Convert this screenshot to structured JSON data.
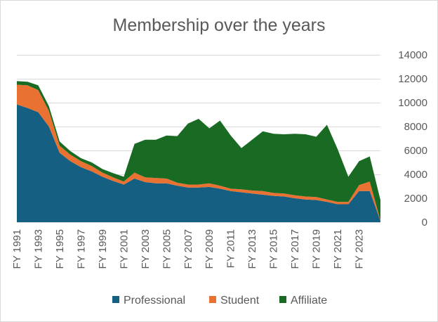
{
  "chart_data": {
    "type": "area",
    "stacked": true,
    "title": "Membership over the years",
    "xlabel": "",
    "ylabel": "",
    "ylim": [
      0,
      14000
    ],
    "yticks": [
      "0",
      "2000",
      "4000",
      "6000",
      "8000",
      "10000",
      "12000",
      "14000"
    ],
    "grid": true,
    "legend_position": "bottom",
    "x": [
      "FY 1991",
      "FY 1992",
      "FY 1993",
      "FY 1994",
      "FY 1995",
      "FY 1996",
      "FY 1997",
      "FY 1998",
      "FY 1999",
      "FY 2000",
      "FY 2001",
      "FY 2002",
      "FY 2003",
      "FY 2004",
      "FY 2005",
      "FY 2006",
      "FY 2007",
      "FY 2008",
      "FY 2009",
      "FY 2010",
      "FY 2011",
      "FY 2012",
      "FY 2013",
      "FY 2014",
      "FY 2015",
      "FY 2016",
      "FY 2017",
      "FY 2018",
      "FY 2019",
      "FY 2020",
      "FY 2021",
      "FY 2022",
      "FY 2023",
      "FY 2024",
      "FY 2025"
    ],
    "xtick_labels": [
      "FY 1991",
      "FY 1993",
      "FY 1995",
      "FY 1997",
      "FY 1999",
      "FY 2001",
      "FY 2003",
      "FY 2005",
      "FY 2007",
      "FY 2009",
      "FY 2011",
      "FY 2013",
      "FY 2015",
      "FY 2017",
      "FY 2019",
      "FY 2021",
      "FY 2023"
    ],
    "series": [
      {
        "name": "Professional",
        "color": "#156082",
        "values": [
          9850,
          9550,
          9200,
          8000,
          5800,
          5100,
          4600,
          4250,
          3800,
          3450,
          3150,
          3650,
          3350,
          3250,
          3250,
          3050,
          2900,
          2900,
          2950,
          2800,
          2600,
          2500,
          2400,
          2300,
          2200,
          2150,
          2000,
          1900,
          1850,
          1700,
          1500,
          1500,
          2600,
          2600,
          100
        ]
      },
      {
        "name": "Student",
        "color": "#E97132",
        "values": [
          1650,
          1900,
          1850,
          1300,
          600,
          550,
          500,
          450,
          350,
          300,
          250,
          500,
          400,
          450,
          400,
          250,
          250,
          250,
          300,
          250,
          200,
          250,
          250,
          300,
          250,
          250,
          250,
          250,
          250,
          200,
          200,
          200,
          500,
          800,
          50
        ]
      },
      {
        "name": "Affiliate",
        "color": "#196B24",
        "values": [
          300,
          300,
          400,
          400,
          350,
          300,
          250,
          300,
          300,
          350,
          400,
          2400,
          3150,
          3200,
          3600,
          3900,
          5100,
          5500,
          4600,
          5450,
          4450,
          3450,
          4250,
          5000,
          4950,
          4950,
          5150,
          5200,
          5050,
          6250,
          4400,
          2100,
          2000,
          2100,
          1700
        ]
      }
    ]
  }
}
